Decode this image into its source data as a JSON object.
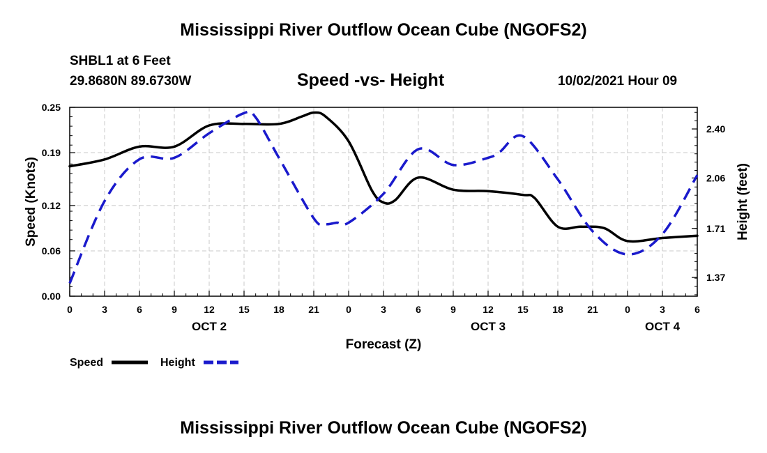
{
  "header": {
    "title": "Mississippi River Outflow Ocean Cube (NGOFS2)",
    "station": "SHBL1 at 6 Feet",
    "coords": "29.8680N  89.6730W",
    "datetime": "10/02/2021 Hour 09"
  },
  "footer": {
    "title": "Mississippi River Outflow Ocean Cube (NGOFS2)"
  },
  "colors": {
    "speed": "#000000",
    "height": "#1a1acc",
    "grid": "#c8c8c8"
  },
  "chart_data": {
    "type": "line",
    "title": "Speed -vs- Height",
    "xlabel": "Forecast (Z)",
    "ylabel": "Speed (Knots)",
    "y2label": "Height (feet)",
    "x_range": [
      0,
      54
    ],
    "x_tick_values": [
      0,
      3,
      6,
      9,
      12,
      15,
      18,
      21,
      24,
      27,
      30,
      33,
      36,
      39,
      42,
      45,
      48,
      51,
      54
    ],
    "x_tick_labels": [
      "0",
      "3",
      "6",
      "9",
      "12",
      "15",
      "18",
      "21",
      "0",
      "3",
      "6",
      "9",
      "12",
      "15",
      "18",
      "21",
      "0",
      "3",
      "6"
    ],
    "day_labels": [
      {
        "hour": 12,
        "label": "OCT 2"
      },
      {
        "hour": 36,
        "label": "OCT 3"
      },
      {
        "hour": 51,
        "label": "OCT 4"
      }
    ],
    "ylim": [
      0,
      0.25
    ],
    "y_ticks": [
      0.0,
      0.06,
      0.12,
      0.19,
      0.25
    ],
    "y_tick_labels": [
      "0.00",
      "0.06",
      "0.12",
      "0.19",
      "0.25"
    ],
    "y2lim": [
      1.24,
      2.55
    ],
    "y2_ticks": [
      1.37,
      1.71,
      2.06,
      2.4
    ],
    "y2_tick_labels": [
      "1.37",
      "1.71",
      "2.06",
      "2.40"
    ],
    "series": [
      {
        "name": "Speed",
        "axis": "left",
        "x": [
          0,
          3,
          6,
          9,
          12,
          15,
          18,
          20,
          21,
          22,
          24,
          26,
          27,
          28,
          30,
          33,
          36,
          39,
          40,
          42,
          44,
          46,
          48,
          51,
          54
        ],
        "values": [
          0.172,
          0.181,
          0.198,
          0.198,
          0.226,
          0.228,
          0.228,
          0.238,
          0.243,
          0.238,
          0.205,
          0.14,
          0.124,
          0.127,
          0.157,
          0.141,
          0.139,
          0.134,
          0.13,
          0.092,
          0.092,
          0.09,
          0.073,
          0.077,
          0.08
        ]
      },
      {
        "name": "Height",
        "axis": "right",
        "x": [
          0,
          3,
          6,
          9,
          12,
          15,
          16,
          18,
          21,
          22,
          23,
          24,
          27,
          30,
          33,
          36,
          37,
          39,
          42,
          45,
          48,
          51,
          54
        ],
        "values": [
          1.33,
          1.9,
          2.19,
          2.2,
          2.37,
          2.51,
          2.48,
          2.2,
          1.78,
          1.74,
          1.75,
          1.75,
          1.95,
          2.26,
          2.15,
          2.2,
          2.24,
          2.35,
          2.05,
          1.69,
          1.53,
          1.67,
          2.08
        ]
      }
    ],
    "legend": [
      {
        "label": "Speed",
        "series": "Speed"
      },
      {
        "label": "Height",
        "series": "Height"
      }
    ],
    "legend_position": "bottom-left"
  }
}
